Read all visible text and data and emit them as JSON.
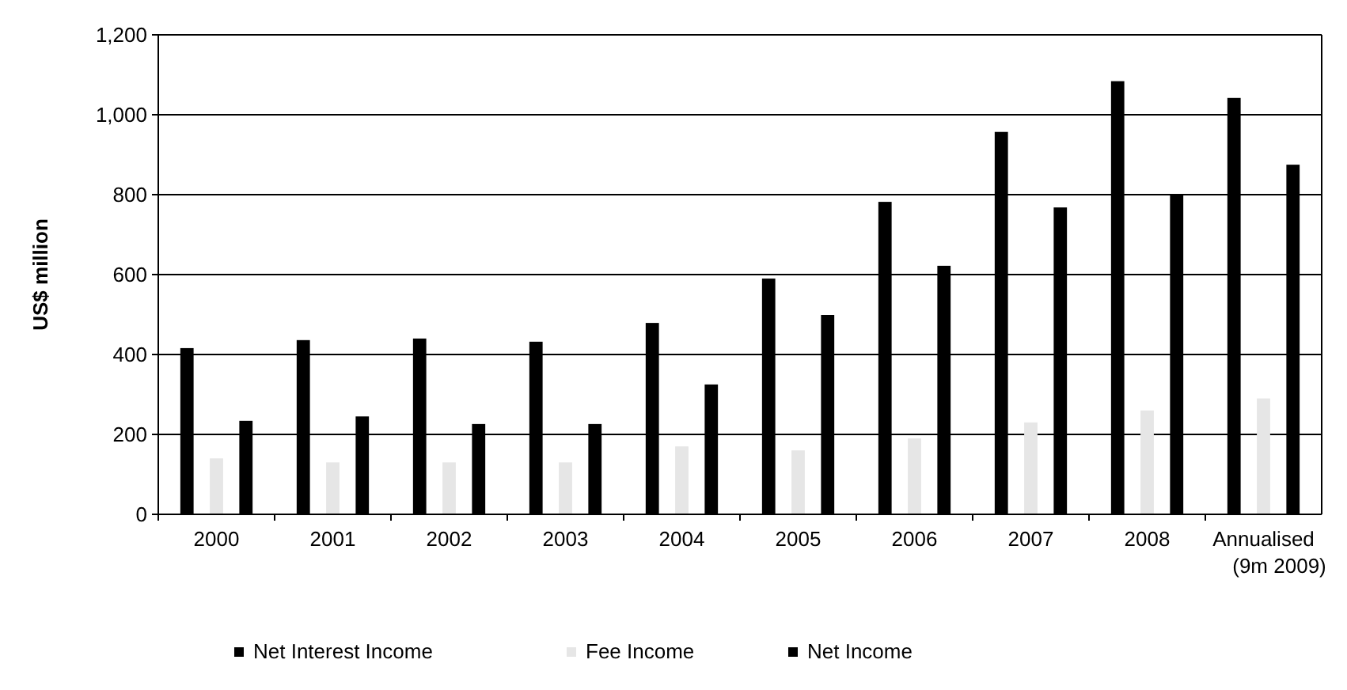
{
  "chart_data": {
    "type": "bar",
    "ylabel": "US$ million",
    "categories": [
      "2000",
      "2001",
      "2002",
      "2003",
      "2004",
      "2005",
      "2006",
      "2007",
      "2008",
      "Annualised\n(9m 2009)"
    ],
    "series": [
      {
        "name": "Net Interest Income",
        "color": "#000000",
        "values": [
          416,
          436,
          440,
          432,
          479,
          590,
          782,
          957,
          1084,
          1042
        ]
      },
      {
        "name": "Fee Income",
        "color": "#e6e6e6",
        "values": [
          140,
          130,
          130,
          130,
          170,
          160,
          190,
          230,
          260,
          290
        ]
      },
      {
        "name": "Net Income",
        "color": "#000000",
        "values": [
          234,
          245,
          226,
          226,
          325,
          499,
          622,
          768,
          800,
          875
        ]
      }
    ],
    "ylim": [
      0,
      1200
    ],
    "yticks": [
      {
        "value": 0,
        "label": "0"
      },
      {
        "value": 200,
        "label": "200"
      },
      {
        "value": 400,
        "label": "400"
      },
      {
        "value": 600,
        "label": "600"
      },
      {
        "value": 800,
        "label": "800"
      },
      {
        "value": 1000,
        "label": "1,000"
      },
      {
        "value": 1200,
        "label": "1,200"
      }
    ],
    "grid": "y",
    "legend": "bottom"
  }
}
